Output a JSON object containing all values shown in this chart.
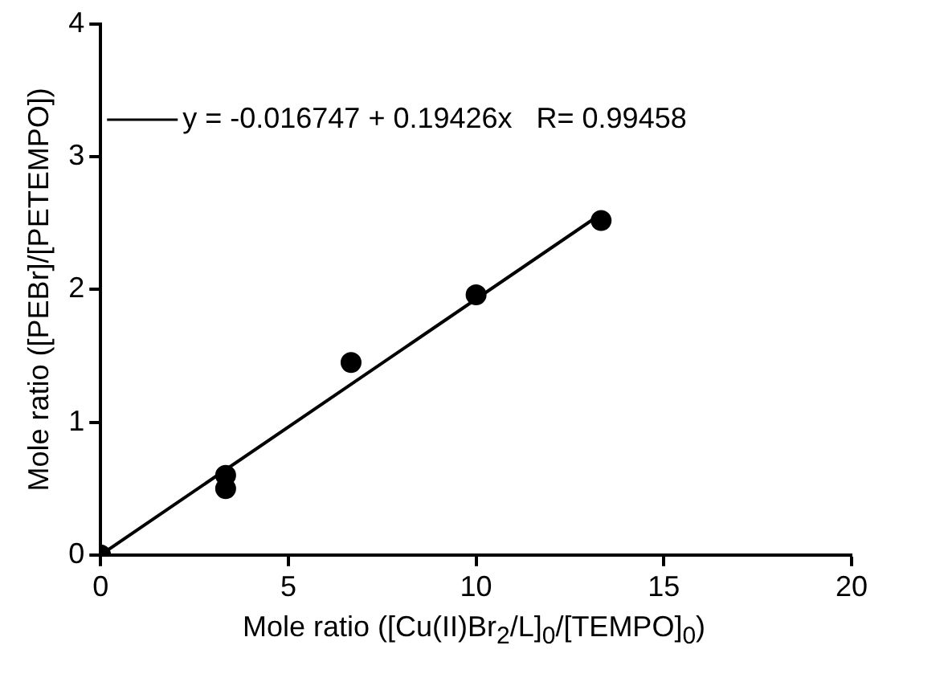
{
  "chart_data": {
    "type": "scatter",
    "xlabel": "Mole ratio ([Cu(II)Br$_{2}$/L]$_{0}$/[TEMPO]$_{0}$)",
    "ylabel": "Mole ratio ([PEBr]/[PETEMPO])",
    "x": [
      0,
      3.33,
      3.33,
      6.67,
      10,
      13.33
    ],
    "series": [
      {
        "color": "#000000",
        "marker": "circle",
        "values": [
          0,
          0.6,
          0.5,
          1.45,
          1.96,
          2.52
        ]
      },
      {
        "type": "line",
        "name": "y = -0.016747 + 0.19426x   R= 0.99458",
        "color": "#000000",
        "marker": "none",
        "x": [
          0,
          13.33
        ],
        "values": [
          0,
          2.57
        ]
      }
    ],
    "xlim": [
      0,
      20
    ],
    "xticks": [
      0,
      5,
      10,
      15,
      20
    ],
    "ylim": [
      0,
      4
    ],
    "yticks": [
      0,
      1,
      2,
      3,
      4
    ],
    "grid": false,
    "legend": "top left"
  }
}
